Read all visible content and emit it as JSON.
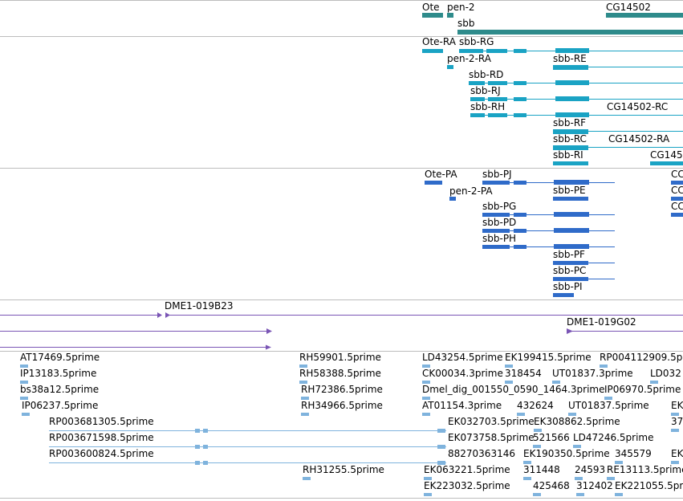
{
  "colors": {
    "gene": "#2e8b8b",
    "transcript": "#1aa3c4",
    "protein": "#2f6bc9",
    "clone": "#7a55b5",
    "est": "#7fb3dd",
    "separator": "#bdbdbd"
  },
  "tracks": {
    "genes": [
      "Ote",
      "pen-2",
      "sbb",
      "CG14502"
    ],
    "transcripts": [
      "Ote-RA",
      "sbb-RG",
      "pen-2-RA",
      "sbb-RE",
      "sbb-RD",
      "sbb-RJ",
      "sbb-RH",
      "CG14502-RC",
      "sbb-RF",
      "sbb-RC",
      "CG14502-RA",
      "sbb-RI",
      "CG145"
    ],
    "proteins": [
      "Ote-PA",
      "sbb-PJ",
      "pen-2-PA",
      "sbb-PE",
      "sbb-PG",
      "sbb-PD",
      "sbb-PH",
      "sbb-PF",
      "sbb-PC",
      "sbb-PI",
      "CC",
      "CC",
      "CC"
    ],
    "clones": [
      "DME1-019B23",
      "DME1-019G02"
    ],
    "ests": [
      "AT17469.5prime",
      "IP13183.5prime",
      "bs38a12.5prime",
      "IP06237.5prime",
      "RP003681305.5prime",
      "RP003671598.5prime",
      "RP003600824.5prime",
      "RH59901.5prime",
      "RH58388.5prime",
      "RH72386.5prime",
      "RH34966.5prime",
      "RH31255.5prime",
      "LD43254.5prime",
      "CK00034.3prime",
      "Dmel_dig_001550_0590_1464.3prime",
      "AT01154.3prime",
      "EK032703.5prime",
      "EK073758.5prime",
      "88270363146",
      "EK063221.5prime",
      "EK223032.5prime",
      "EK199415.5prime",
      "318454",
      "432624",
      "EK308862.5prime",
      "521566",
      "EK190350.5prime",
      "311448",
      "425468",
      "24593",
      "312402",
      "RP004112909.5p",
      "UT01837.3prime",
      "UT01837.5prime",
      "LD47246.5prime",
      "345579",
      "RE13113.5prime",
      "EK221055.5pr",
      "LD032",
      "IP06970.5prime",
      "EK",
      "37",
      "EK"
    ]
  }
}
